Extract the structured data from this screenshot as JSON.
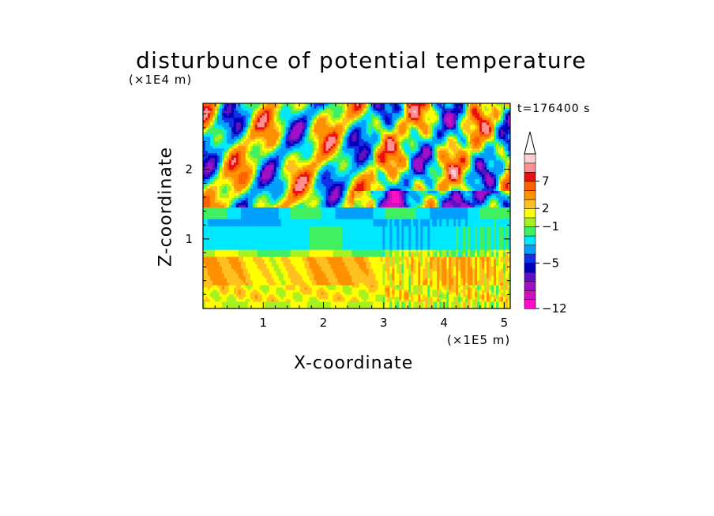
{
  "chart_data": {
    "type": "heatmap",
    "title": "disturbunce of potential temperature",
    "xlabel": "X-coordinate",
    "ylabel": "Z-coordinate",
    "x_unit": "(×1E5 m)",
    "z_unit": "(×1E4 m)",
    "time_label": "t=176400 s",
    "xlim": [
      0,
      5.1
    ],
    "ylim": [
      0,
      2.95
    ],
    "x_ticks": [
      1,
      2,
      3,
      4,
      5
    ],
    "y_ticks": [
      1,
      2
    ],
    "colorbar": {
      "labels": [
        "7",
        "2",
        "−1",
        "−5",
        "−12"
      ],
      "colors": [
        "#ff10c8",
        "#d010c0",
        "#a010c8",
        "#6010c0",
        "#0000b8",
        "#1030e8",
        "#00a0ff",
        "#00e8ff",
        "#40f060",
        "#a8f020",
        "#ffff00",
        "#ffc020",
        "#ff9000",
        "#ff6000",
        "#e81010",
        "#ff9090",
        "#ffd0d0"
      ],
      "extend": "max"
    },
    "field_description_layers": [
      {
        "z_range": [
          0,
          0.35
        ],
        "level": "warm (+1 to +3)"
      },
      {
        "z_range": [
          0.35,
          0.75
        ],
        "level": "warm (+2 to +4)"
      },
      {
        "z_range": [
          0.85,
          1.3
        ],
        "level": "cold (-1 to -3)"
      },
      {
        "z_range": [
          1.3,
          2.95
        ],
        "level": "mixed wave pattern (-8 to +9)"
      }
    ]
  }
}
